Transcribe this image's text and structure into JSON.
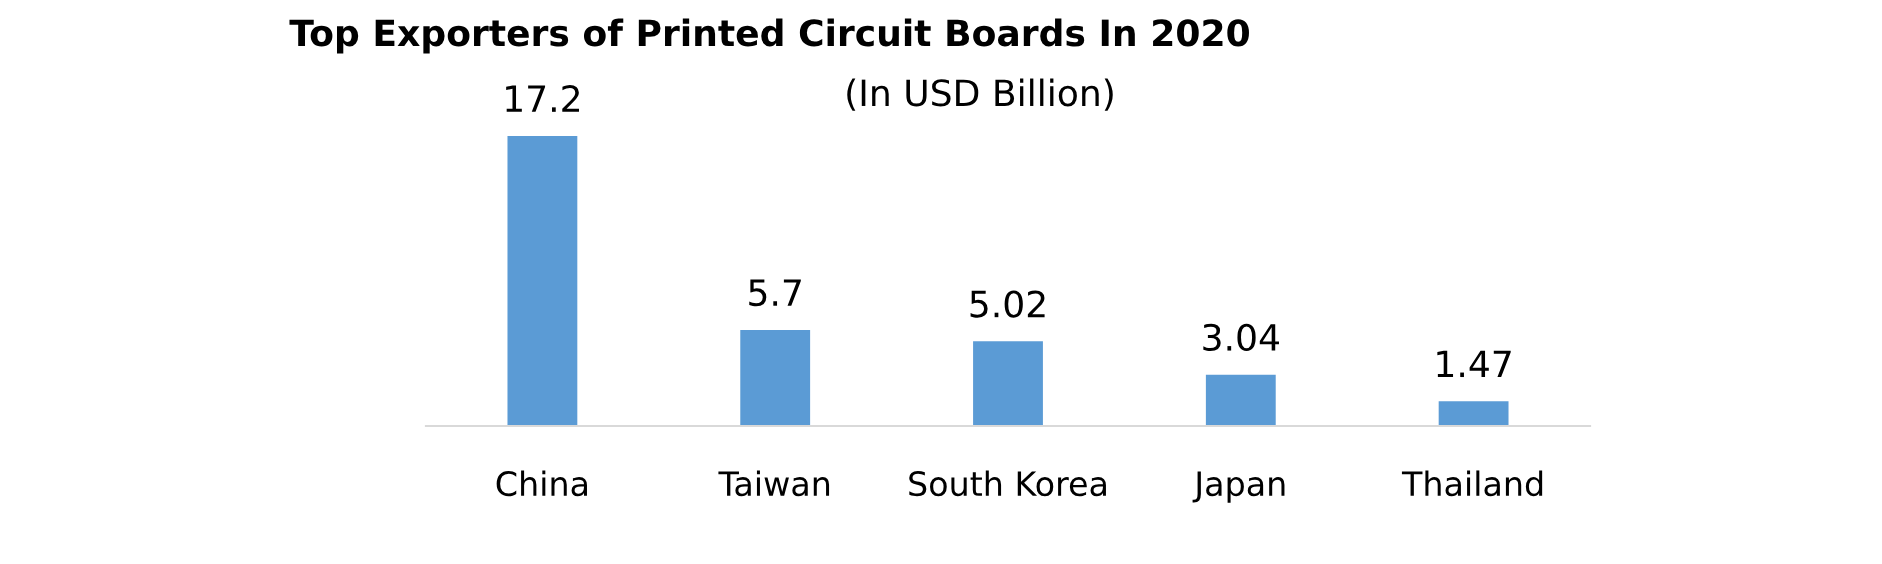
{
  "chart_data": {
    "type": "bar",
    "title": "Top Exporters of Printed Circuit Boards In 2020",
    "subtitle": "(In USD Billion)",
    "categories": [
      "China",
      "Taiwan",
      "South Korea",
      "Japan",
      "Thailand"
    ],
    "values": [
      17.2,
      5.7,
      5.02,
      3.04,
      1.47
    ],
    "color": "#5b9bd5",
    "data_labels": true,
    "grid": false,
    "legend": false
  }
}
